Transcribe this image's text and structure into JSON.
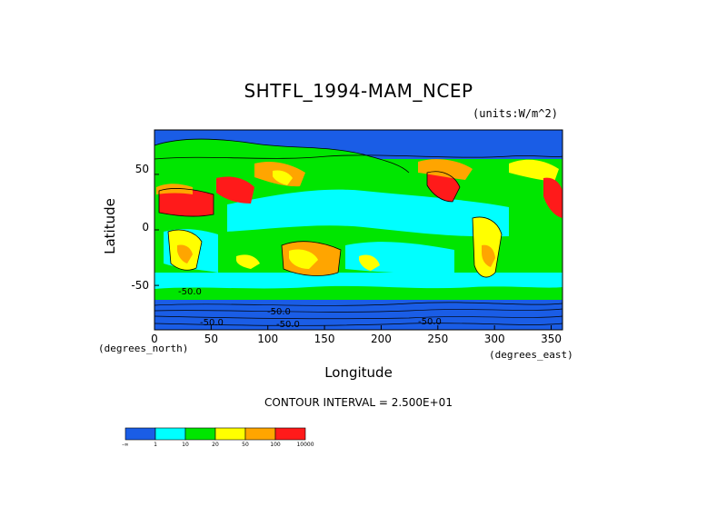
{
  "title": "SHTFL_1994-MAM_NCEP",
  "units": "(units:W/m^2)",
  "ylabel": "Latitude",
  "xlabel": "Longitude",
  "x_units_left": "(degrees_north)",
  "x_units_right": "(degrees_east)",
  "contour_interval": "CONTOUR INTERVAL = 2.500E+01",
  "chart_data": {
    "type": "heatmap",
    "title": "SHTFL_1994-MAM_NCEP",
    "xlabel": "Longitude",
    "ylabel": "Latitude",
    "xlim": [
      0,
      360
    ],
    "ylim": [
      -90,
      90
    ],
    "x_ticks": [
      "0",
      "50",
      "100",
      "150",
      "200",
      "250",
      "300",
      "350"
    ],
    "y_ticks": [
      "50",
      "0",
      "-50"
    ],
    "contour_labels": [
      "-50.0",
      "-50.0",
      "-50.0",
      "-50.0",
      "-50.0"
    ],
    "colorbar": {
      "colors": [
        "#1a5de6",
        "#00ffff",
        "#00e600",
        "#ffff00",
        "#ffa500",
        "#ff1a1a"
      ],
      "labels": [
        "-∞",
        "1",
        "10",
        "20",
        "50",
        "100",
        "10000"
      ]
    }
  }
}
